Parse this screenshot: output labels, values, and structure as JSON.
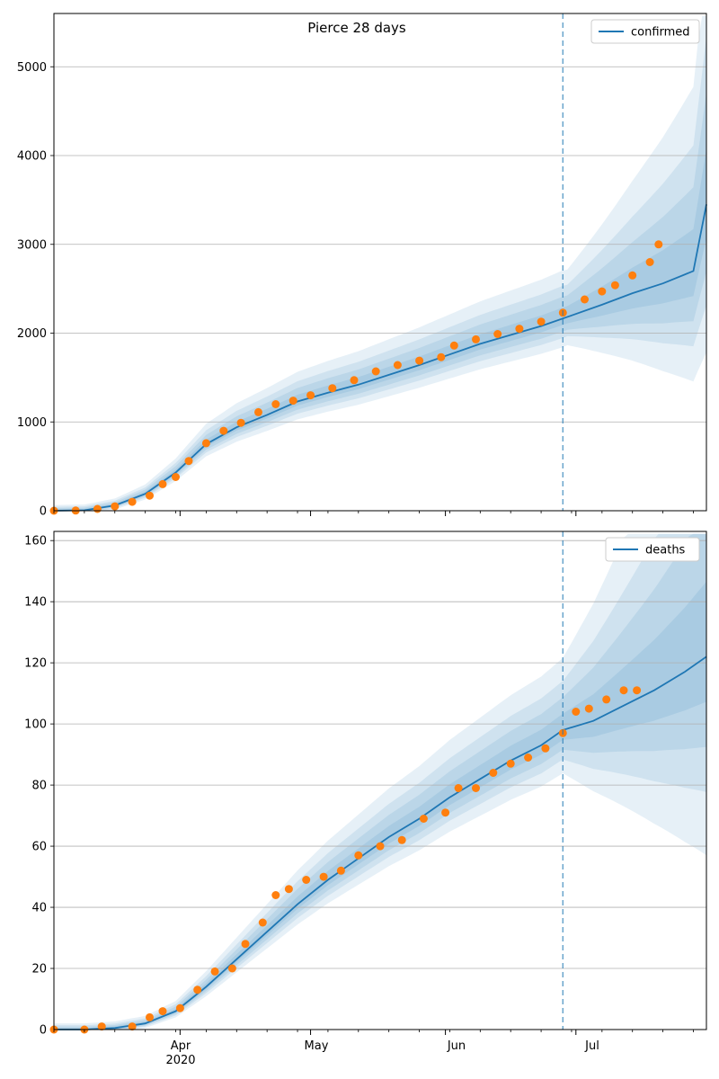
{
  "figure": {
    "title": "Pierce 28 days"
  },
  "x_axis": {
    "tick_labels": [
      "Apr",
      "May",
      "Jun",
      "Jul"
    ],
    "year_label": "2020"
  },
  "colors": {
    "line": "#1f77b4",
    "observed": "#ff7f0e",
    "band": "#1f77b4",
    "grid": "#b0b0b0",
    "forecast_line": "#1f77b4"
  },
  "chart_data": [
    {
      "type": "line",
      "legend": "confirmed",
      "legend_position": "top-right",
      "xlim": [
        "2020-03-03",
        "2020-07-31"
      ],
      "ylim": [
        0,
        5600
      ],
      "yticks": [
        0,
        1000,
        2000,
        3000,
        4000,
        5000
      ],
      "grid": "y",
      "forecast_start": "2020-06-28",
      "series": [
        {
          "name": "confirmed",
          "kind": "model-line",
          "points": [
            [
              "2020-03-03",
              0
            ],
            [
              "2020-03-10",
              5
            ],
            [
              "2020-03-17",
              60
            ],
            [
              "2020-03-24",
              190
            ],
            [
              "2020-03-31",
              430
            ],
            [
              "2020-04-07",
              750
            ],
            [
              "2020-04-14",
              940
            ],
            [
              "2020-04-21",
              1080
            ],
            [
              "2020-04-28",
              1230
            ],
            [
              "2020-05-05",
              1330
            ],
            [
              "2020-05-12",
              1420
            ],
            [
              "2020-05-19",
              1530
            ],
            [
              "2020-05-26",
              1640
            ],
            [
              "2020-06-02",
              1760
            ],
            [
              "2020-06-09",
              1880
            ],
            [
              "2020-06-16",
              1980
            ],
            [
              "2020-06-23",
              2080
            ],
            [
              "2020-06-30",
              2200
            ],
            [
              "2020-07-07",
              2320
            ],
            [
              "2020-07-14",
              2450
            ],
            [
              "2020-07-21",
              2560
            ],
            [
              "2020-07-28",
              2700
            ],
            [
              "2020-07-31",
              3450
            ]
          ]
        },
        {
          "name": "observed",
          "kind": "scatter",
          "points": [
            [
              "2020-03-03",
              0
            ],
            [
              "2020-03-08",
              2
            ],
            [
              "2020-03-13",
              20
            ],
            [
              "2020-03-17",
              50
            ],
            [
              "2020-03-21",
              100
            ],
            [
              "2020-03-25",
              170
            ],
            [
              "2020-03-28",
              300
            ],
            [
              "2020-03-31",
              380
            ],
            [
              "2020-04-03",
              560
            ],
            [
              "2020-04-07",
              760
            ],
            [
              "2020-04-11",
              900
            ],
            [
              "2020-04-15",
              990
            ],
            [
              "2020-04-19",
              1110
            ],
            [
              "2020-04-23",
              1200
            ],
            [
              "2020-04-27",
              1240
            ],
            [
              "2020-05-01",
              1300
            ],
            [
              "2020-05-06",
              1380
            ],
            [
              "2020-05-11",
              1470
            ],
            [
              "2020-05-16",
              1570
            ],
            [
              "2020-05-21",
              1640
            ],
            [
              "2020-05-26",
              1690
            ],
            [
              "2020-05-31",
              1730
            ],
            [
              "2020-06-03",
              1860
            ],
            [
              "2020-06-08",
              1930
            ],
            [
              "2020-06-13",
              1990
            ],
            [
              "2020-06-18",
              2050
            ],
            [
              "2020-06-23",
              2130
            ],
            [
              "2020-06-28",
              2230
            ],
            [
              "2020-07-03",
              2380
            ],
            [
              "2020-07-07",
              2470
            ],
            [
              "2020-07-10",
              2540
            ],
            [
              "2020-07-14",
              2650
            ],
            [
              "2020-07-18",
              2800
            ],
            [
              "2020-07-20",
              3000
            ]
          ]
        }
      ]
    },
    {
      "type": "line",
      "legend": "deaths",
      "legend_position": "top-right",
      "xlim": [
        "2020-03-03",
        "2020-07-31"
      ],
      "ylim": [
        0,
        163
      ],
      "yticks": [
        0,
        20,
        40,
        60,
        80,
        100,
        120,
        140,
        160
      ],
      "grid": "y",
      "forecast_start": "2020-06-28",
      "series": [
        {
          "name": "deaths",
          "kind": "model-line",
          "points": [
            [
              "2020-03-03",
              0
            ],
            [
              "2020-03-10",
              0
            ],
            [
              "2020-03-17",
              0.5
            ],
            [
              "2020-03-24",
              2
            ],
            [
              "2020-03-31",
              6
            ],
            [
              "2020-04-07",
              14
            ],
            [
              "2020-04-14",
              23
            ],
            [
              "2020-04-21",
              32
            ],
            [
              "2020-04-28",
              41
            ],
            [
              "2020-05-05",
              49
            ],
            [
              "2020-05-12",
              56
            ],
            [
              "2020-05-19",
              63
            ],
            [
              "2020-05-26",
              69
            ],
            [
              "2020-06-02",
              76
            ],
            [
              "2020-06-09",
              82
            ],
            [
              "2020-06-16",
              88
            ],
            [
              "2020-06-23",
              93
            ],
            [
              "2020-06-28",
              98
            ],
            [
              "2020-07-05",
              101
            ],
            [
              "2020-07-12",
              106
            ],
            [
              "2020-07-19",
              111
            ],
            [
              "2020-07-26",
              117
            ],
            [
              "2020-07-31",
              122
            ]
          ]
        },
        {
          "name": "observed",
          "kind": "scatter",
          "points": [
            [
              "2020-03-03",
              0
            ],
            [
              "2020-03-10",
              0
            ],
            [
              "2020-03-14",
              1
            ],
            [
              "2020-03-21",
              1
            ],
            [
              "2020-03-25",
              4
            ],
            [
              "2020-03-28",
              6
            ],
            [
              "2020-04-01",
              7
            ],
            [
              "2020-04-05",
              13
            ],
            [
              "2020-04-09",
              19
            ],
            [
              "2020-04-13",
              20
            ],
            [
              "2020-04-16",
              28
            ],
            [
              "2020-04-20",
              35
            ],
            [
              "2020-04-23",
              44
            ],
            [
              "2020-04-26",
              46
            ],
            [
              "2020-04-30",
              49
            ],
            [
              "2020-05-04",
              50
            ],
            [
              "2020-05-08",
              52
            ],
            [
              "2020-05-12",
              57
            ],
            [
              "2020-05-17",
              60
            ],
            [
              "2020-05-22",
              62
            ],
            [
              "2020-05-27",
              69
            ],
            [
              "2020-06-01",
              71
            ],
            [
              "2020-06-04",
              79
            ],
            [
              "2020-06-08",
              79
            ],
            [
              "2020-06-12",
              84
            ],
            [
              "2020-06-16",
              87
            ],
            [
              "2020-06-20",
              89
            ],
            [
              "2020-06-24",
              92
            ],
            [
              "2020-06-28",
              97
            ],
            [
              "2020-07-01",
              104
            ],
            [
              "2020-07-04",
              105
            ],
            [
              "2020-07-08",
              108
            ],
            [
              "2020-07-12",
              111
            ],
            [
              "2020-07-15",
              111
            ]
          ]
        }
      ]
    }
  ]
}
